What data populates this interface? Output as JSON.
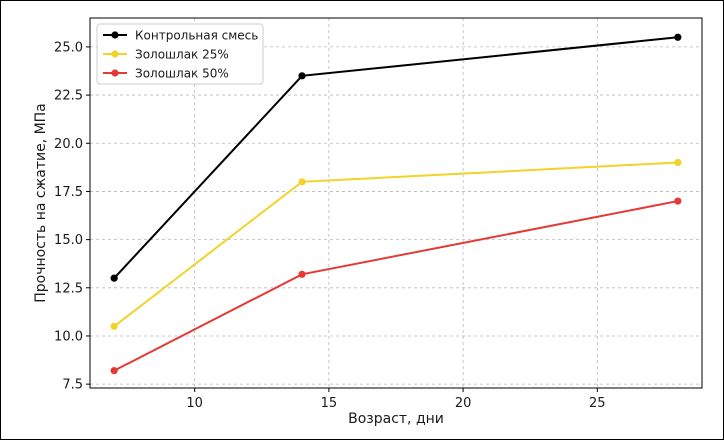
{
  "chart_data": {
    "type": "line",
    "title": "",
    "xlabel": "Возраст, дни",
    "ylabel": "Прочность на сжатие, МПа",
    "x": [
      7,
      14,
      28
    ],
    "xlim": [
      6.1,
      28.9
    ],
    "ylim": [
      7.3,
      26.5
    ],
    "xticks": [
      10,
      15,
      20,
      25
    ],
    "yticks": [
      7.5,
      10.0,
      12.5,
      15.0,
      17.5,
      20.0,
      22.5,
      25.0
    ],
    "grid": true,
    "legend_position": "top-left",
    "series": [
      {
        "name": "Контрольная смесь",
        "color": "#000000",
        "values": [
          13.0,
          23.5,
          25.5
        ]
      },
      {
        "name": "Золошлак 25%",
        "color": "#f2d32a",
        "values": [
          10.5,
          18.0,
          19.0
        ]
      },
      {
        "name": "Золошлак 50%",
        "color": "#e53935",
        "values": [
          8.2,
          13.2,
          17.0
        ]
      }
    ]
  }
}
